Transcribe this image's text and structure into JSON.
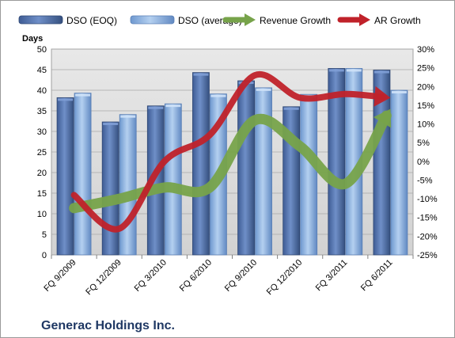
{
  "chart_data": {
    "type": "bar",
    "categories": [
      "FQ 9/2009",
      "FQ 12/2009",
      "FQ 3/2010",
      "FQ 6/2010",
      "FQ 9/2010",
      "FQ 12/2010",
      "FQ 3/2011",
      "FQ 6/2011"
    ],
    "series": [
      {
        "name": "DSO (EOQ)",
        "type": "bar",
        "axis": "left",
        "values": [
          38.2,
          32.3,
          36.2,
          44.3,
          42.3,
          36.0,
          45.3,
          44.9
        ]
      },
      {
        "name": "DSO (average)",
        "type": "bar",
        "axis": "left",
        "values": [
          39.3,
          34.1,
          36.7,
          39.1,
          40.6,
          39.0,
          45.3,
          40.0
        ]
      },
      {
        "name": "Revenue Growth",
        "type": "line",
        "axis": "right",
        "values": [
          -12.5,
          -10,
          -7,
          -7,
          11,
          4,
          -6,
          14
        ]
      },
      {
        "name": "AR Growth",
        "type": "line",
        "axis": "right",
        "values": [
          -9,
          -18,
          0,
          7,
          23,
          17,
          18,
          17
        ]
      }
    ],
    "ylabel": "Days",
    "ylim": [
      0,
      50
    ],
    "y_ticks": [
      "0",
      "5",
      "10",
      "15",
      "20",
      "25",
      "30",
      "35",
      "40",
      "45",
      "50"
    ],
    "y2lim": [
      -25,
      30
    ],
    "y2_ticks": [
      "-25%",
      "-20%",
      "-15%",
      "-10%",
      "-5%",
      "0%",
      "5%",
      "10%",
      "15%",
      "20%",
      "25%",
      "30%"
    ],
    "grid": true,
    "legend_placement": "top",
    "colors": {
      "dso_eoq": "#4f6fa8",
      "dso_avg": "#8db3e2",
      "revenue_growth": "#77a34a",
      "ar_growth": "#c0222a",
      "plot_bg": "#d9d9d9"
    }
  },
  "footer": {
    "company": "Generac Holdings Inc."
  }
}
